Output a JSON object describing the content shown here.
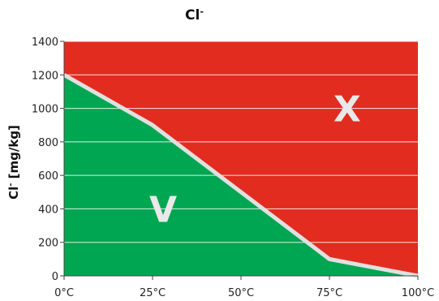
{
  "chart_data": {
    "type": "area",
    "title": "Cl",
    "title_superscript": "-",
    "ylabel": "Cl",
    "ylabel_superscript": "-",
    "ylabel_unit": "[mg/kg]",
    "x": [
      0,
      25,
      50,
      75,
      100
    ],
    "x_tick_labels": [
      "0°C",
      "25°C",
      "50°C",
      "75°C",
      "100°C"
    ],
    "y_ticks": [
      0,
      200,
      400,
      600,
      800,
      1000,
      1200,
      1400
    ],
    "xlim": [
      0,
      100
    ],
    "ylim": [
      0,
      1400
    ],
    "grid": true,
    "boundary": {
      "x": [
        0,
        25,
        75,
        100
      ],
      "y": [
        1200,
        900,
        100,
        0
      ]
    },
    "regions": [
      {
        "label": "V",
        "color": "#00a651",
        "position": "below"
      },
      {
        "label": "X",
        "color": "#e12c1f",
        "position": "above"
      }
    ],
    "boundary_color": "#e0e0e0"
  }
}
